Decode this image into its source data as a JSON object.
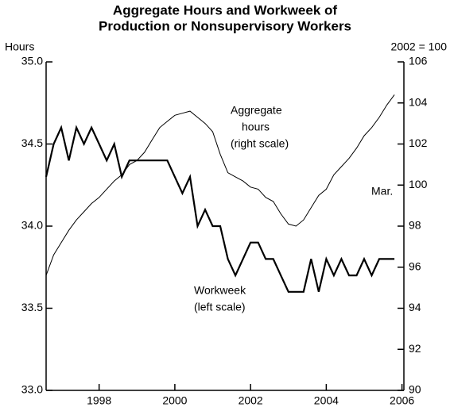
{
  "chart_data": {
    "type": "line",
    "title": [
      "Aggregate Hours and Workweek of",
      "Production or Nonsupervisory Workers"
    ],
    "y_label": "Hours",
    "y2_label": "2002 = 100",
    "annotations": {
      "aggregate": [
        "Aggregate",
        "hours",
        "(right scale)"
      ],
      "workweek": [
        "Workweek",
        "(left scale)"
      ],
      "month": "Mar."
    },
    "x": [
      1996.6,
      1996.8,
      1997.0,
      1997.2,
      1997.4,
      1997.6,
      1997.8,
      1998.0,
      1998.2,
      1998.4,
      1998.6,
      1998.8,
      1999.0,
      1999.2,
      1999.4,
      1999.6,
      1999.8,
      2000.0,
      2000.2,
      2000.4,
      2000.6,
      2000.8,
      2001.0,
      2001.2,
      2001.4,
      2001.6,
      2001.8,
      2002.0,
      2002.2,
      2002.4,
      2002.6,
      2002.8,
      2003.0,
      2003.2,
      2003.4,
      2003.6,
      2003.8,
      2004.0,
      2004.2,
      2004.4,
      2004.6,
      2004.8,
      2005.0,
      2005.2,
      2005.4,
      2005.6,
      2005.8
    ],
    "series": [
      {
        "name": "Workweek",
        "color": "#000000",
        "axis": "y",
        "values": [
          34.3,
          34.5,
          34.6,
          34.4,
          34.6,
          34.5,
          34.6,
          34.5,
          34.4,
          34.5,
          34.3,
          34.4,
          34.4,
          34.4,
          34.4,
          34.4,
          34.4,
          34.3,
          34.2,
          34.3,
          34.0,
          34.1,
          34.0,
          34.0,
          33.8,
          33.7,
          33.8,
          33.9,
          33.9,
          33.8,
          33.8,
          33.7,
          33.6,
          33.6,
          33.6,
          33.8,
          33.6,
          33.8,
          33.7,
          33.8,
          33.7,
          33.7,
          33.8,
          33.7,
          33.8,
          33.8,
          33.8
        ]
      },
      {
        "name": "Aggregate hours",
        "color": "#000000",
        "axis": "y2",
        "values": [
          95.6,
          96.6,
          97.2,
          97.8,
          98.3,
          98.7,
          99.1,
          99.4,
          99.8,
          100.2,
          100.5,
          101.0,
          101.2,
          101.6,
          102.2,
          102.8,
          103.1,
          103.4,
          103.5,
          103.6,
          103.3,
          103.0,
          102.6,
          101.5,
          100.6,
          100.4,
          100.2,
          99.9,
          99.8,
          99.4,
          99.2,
          98.6,
          98.1,
          98.0,
          98.3,
          98.9,
          99.5,
          99.8,
          100.5,
          100.9,
          101.3,
          101.8,
          102.4,
          102.8,
          103.3,
          103.9,
          104.4
        ]
      }
    ],
    "xlim": [
      1996.6,
      2006.05
    ],
    "xticks": [
      1998,
      2000,
      2002,
      2004,
      2006
    ],
    "ylim": [
      33,
      35
    ],
    "yticks": [
      {
        "value": 33,
        "label": "33.0"
      },
      33.5,
      {
        "value": 34,
        "label": "34.0"
      },
      34.5,
      {
        "value": 35,
        "label": "35.0"
      }
    ],
    "y2lim": [
      90,
      106
    ],
    "y2ticks": [
      90,
      92,
      94,
      96,
      98,
      100,
      102,
      104,
      106
    ]
  }
}
